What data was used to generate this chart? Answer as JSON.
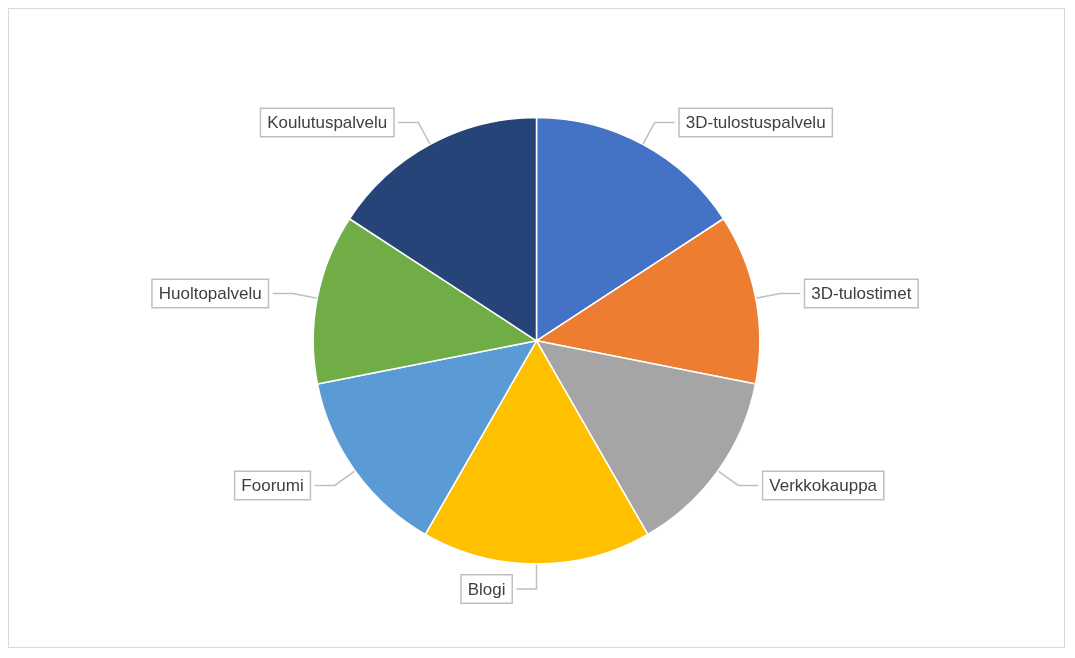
{
  "chart_data": {
    "type": "pie",
    "categories": [
      "3D-tulostuspalvelu",
      "3D-tulostimet",
      "Verkkokauppa",
      "Blogi",
      "Foorumi",
      "Huoltopalvelu",
      "Koulutuspalvelu"
    ],
    "values": [
      15.8,
      12.3,
      13.6,
      16.6,
      13.6,
      12.3,
      15.8
    ],
    "colors": [
      "#4472c4",
      "#ed7d31",
      "#a5a5a5",
      "#ffc000",
      "#5b9bd5",
      "#70ad47",
      "#264478"
    ],
    "legend": false
  }
}
